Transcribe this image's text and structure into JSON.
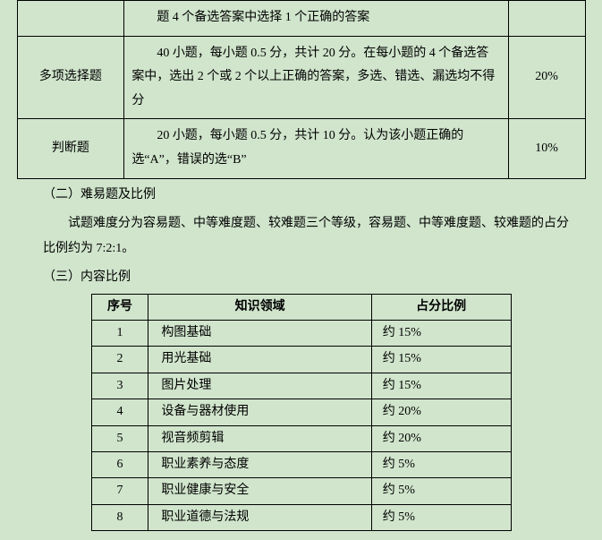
{
  "colors": {
    "background": "#d0e5cc",
    "border": "#000000",
    "text": "#000000"
  },
  "table1": {
    "rows": [
      {
        "type": "",
        "desc_only": "题 4 个备选答案中选择 1 个正确的答案",
        "pct": ""
      },
      {
        "type": "多项选择题",
        "desc": "40 小题，每小题 0.5 分，共计 20 分。在每小题的 4 个备选答案中，选出 2 个或 2 个以上正确的答案，多选、错选、漏选均不得分",
        "pct": "20%"
      },
      {
        "type": "判断题",
        "desc": "20 小题，每小题 0.5 分，共计 10 分。认为该小题正确的选“A”，错误的选“B”",
        "pct": "10%"
      }
    ]
  },
  "headings": {
    "h2": "（二）难易题及比例",
    "p1": "试题难度分为容易题、中等难度题、较难题三个等级，容易题、中等难度题、较难题的占分比例约为 7:2:1。",
    "h3": "（三）内容比例"
  },
  "table2": {
    "headers": {
      "seq": "序号",
      "domain": "知识领域",
      "pct": "占分比例"
    },
    "rows": [
      {
        "seq": "1",
        "domain": "构图基础",
        "pct": "约 15%"
      },
      {
        "seq": "2",
        "domain": "用光基础",
        "pct": "约 15%"
      },
      {
        "seq": "3",
        "domain": "图片处理",
        "pct": "约 15%"
      },
      {
        "seq": "4",
        "domain": "设备与器材使用",
        "pct": "约 20%"
      },
      {
        "seq": "5",
        "domain": "视音频剪辑",
        "pct": "约 20%"
      },
      {
        "seq": "6",
        "domain": "职业素养与态度",
        "pct": "约 5%"
      },
      {
        "seq": "7",
        "domain": "职业健康与安全",
        "pct": "约 5%"
      },
      {
        "seq": "8",
        "domain": "职业道德与法规",
        "pct": "约 5%"
      }
    ]
  }
}
